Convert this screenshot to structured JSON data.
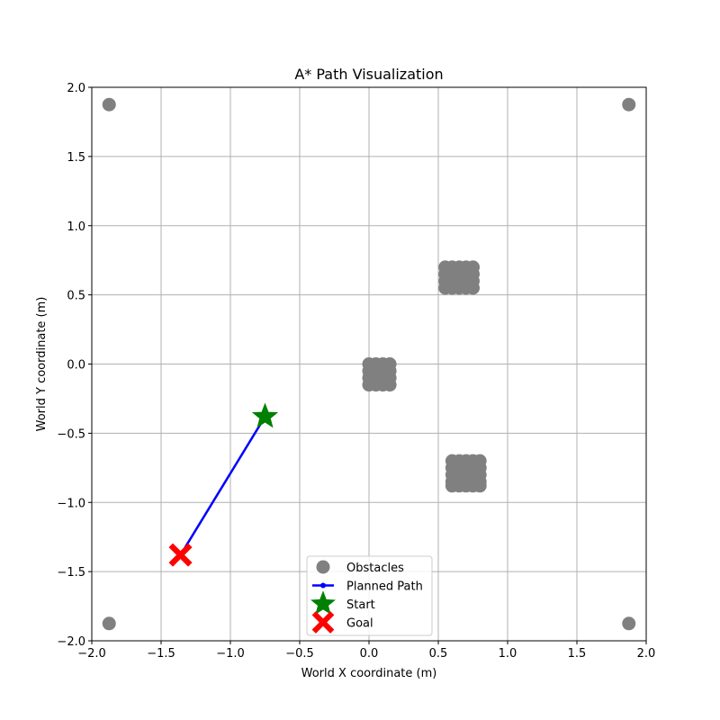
{
  "chart_data": {
    "type": "scatter",
    "title": "A* Path Visualization",
    "xlabel": "World X coordinate (m)",
    "ylabel": "World Y coordinate (m)",
    "xlim": [
      -2.0,
      2.0
    ],
    "ylim": [
      -2.0,
      2.0
    ],
    "x_ticks": [
      -2.0,
      -1.5,
      -1.0,
      -0.5,
      0.0,
      0.5,
      1.0,
      1.5,
      2.0
    ],
    "y_ticks": [
      -2.0,
      -1.5,
      -1.0,
      -0.5,
      0.0,
      0.5,
      1.0,
      1.5,
      2.0
    ],
    "x_tick_labels": [
      "−2.0",
      "−1.5",
      "−1.0",
      "−0.5",
      "0.0",
      "0.5",
      "1.0",
      "1.5",
      "2.0"
    ],
    "y_tick_labels": [
      "−2.0",
      "−1.5",
      "−1.0",
      "−0.5",
      "0.0",
      "0.5",
      "1.0",
      "1.5",
      "2.0"
    ],
    "grid": true,
    "legend_placement": "lower-center",
    "series": [
      {
        "name": "Obstacles",
        "marker": "circle",
        "color": "#808080",
        "points": [
          [
            -1.875,
            1.875
          ],
          [
            1.875,
            1.875
          ],
          [
            -1.875,
            -1.875
          ],
          [
            1.875,
            -1.875
          ],
          [
            0.0,
            0.0
          ],
          [
            0.05,
            0.0
          ],
          [
            0.1,
            0.0
          ],
          [
            0.15,
            0.0
          ],
          [
            0.0,
            -0.05
          ],
          [
            0.05,
            -0.05
          ],
          [
            0.1,
            -0.05
          ],
          [
            0.15,
            -0.05
          ],
          [
            0.0,
            -0.1
          ],
          [
            0.05,
            -0.1
          ],
          [
            0.1,
            -0.1
          ],
          [
            0.15,
            -0.1
          ],
          [
            0.0,
            -0.15
          ],
          [
            0.05,
            -0.15
          ],
          [
            0.1,
            -0.15
          ],
          [
            0.15,
            -0.15
          ],
          [
            0.55,
            0.7
          ],
          [
            0.6,
            0.7
          ],
          [
            0.65,
            0.7
          ],
          [
            0.7,
            0.7
          ],
          [
            0.75,
            0.7
          ],
          [
            0.55,
            0.65
          ],
          [
            0.6,
            0.65
          ],
          [
            0.65,
            0.65
          ],
          [
            0.7,
            0.65
          ],
          [
            0.75,
            0.65
          ],
          [
            0.55,
            0.6
          ],
          [
            0.6,
            0.6
          ],
          [
            0.65,
            0.6
          ],
          [
            0.7,
            0.6
          ],
          [
            0.75,
            0.6
          ],
          [
            0.55,
            0.55
          ],
          [
            0.6,
            0.55
          ],
          [
            0.65,
            0.55
          ],
          [
            0.7,
            0.55
          ],
          [
            0.75,
            0.55
          ],
          [
            0.6,
            -0.7
          ],
          [
            0.65,
            -0.7
          ],
          [
            0.7,
            -0.7
          ],
          [
            0.75,
            -0.7
          ],
          [
            0.8,
            -0.7
          ],
          [
            0.6,
            -0.75
          ],
          [
            0.65,
            -0.75
          ],
          [
            0.7,
            -0.75
          ],
          [
            0.75,
            -0.75
          ],
          [
            0.8,
            -0.75
          ],
          [
            0.6,
            -0.8
          ],
          [
            0.65,
            -0.8
          ],
          [
            0.7,
            -0.8
          ],
          [
            0.75,
            -0.8
          ],
          [
            0.8,
            -0.8
          ],
          [
            0.6,
            -0.85
          ],
          [
            0.65,
            -0.85
          ],
          [
            0.7,
            -0.85
          ],
          [
            0.75,
            -0.85
          ],
          [
            0.8,
            -0.85
          ],
          [
            0.6,
            -0.88
          ],
          [
            0.65,
            -0.88
          ],
          [
            0.7,
            -0.88
          ],
          [
            0.75,
            -0.88
          ],
          [
            0.8,
            -0.88
          ]
        ]
      },
      {
        "name": "Planned Path",
        "marker": "line",
        "color": "#0000ff",
        "points": [
          [
            -0.75,
            -0.38
          ],
          [
            -1.36,
            -1.38
          ]
        ]
      },
      {
        "name": "Start",
        "marker": "star",
        "color": "#008000",
        "points": [
          [
            -0.75,
            -0.38
          ]
        ]
      },
      {
        "name": "Goal",
        "marker": "x",
        "color": "#ff0000",
        "points": [
          [
            -1.36,
            -1.38
          ]
        ]
      }
    ]
  }
}
